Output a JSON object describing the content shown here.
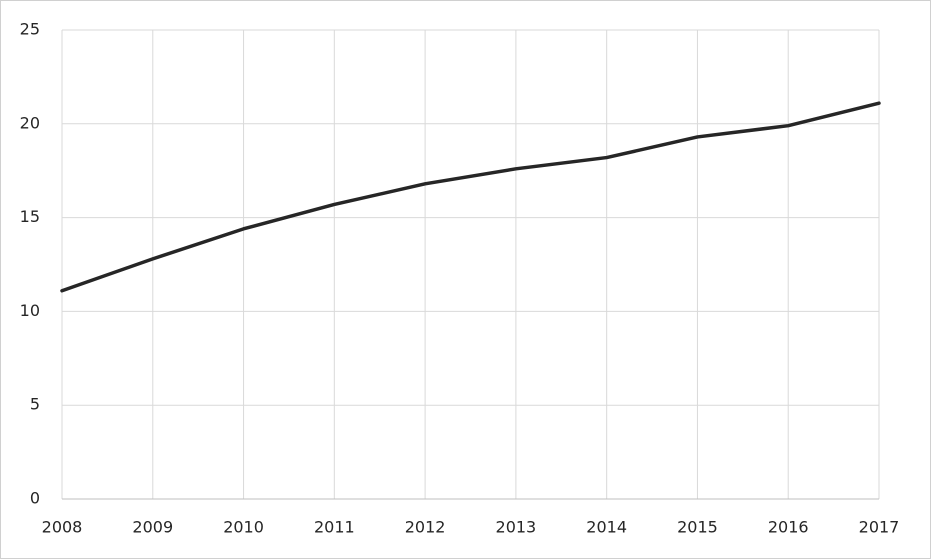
{
  "chart_data": {
    "type": "line",
    "x": [
      2008,
      2009,
      2010,
      2011,
      2012,
      2013,
      2014,
      2015,
      2016,
      2017
    ],
    "values": [
      11.1,
      12.8,
      14.4,
      15.7,
      16.8,
      17.6,
      18.2,
      19.3,
      19.9,
      21.1
    ],
    "color": "#262626",
    "xlim": [
      2008,
      2017
    ],
    "xticks": [
      2008,
      2009,
      2010,
      2011,
      2012,
      2013,
      2014,
      2015,
      2016,
      2017
    ],
    "ylim": [
      0,
      25
    ],
    "yticks": [
      0,
      5,
      10,
      15,
      20,
      25
    ],
    "grid": true
  }
}
